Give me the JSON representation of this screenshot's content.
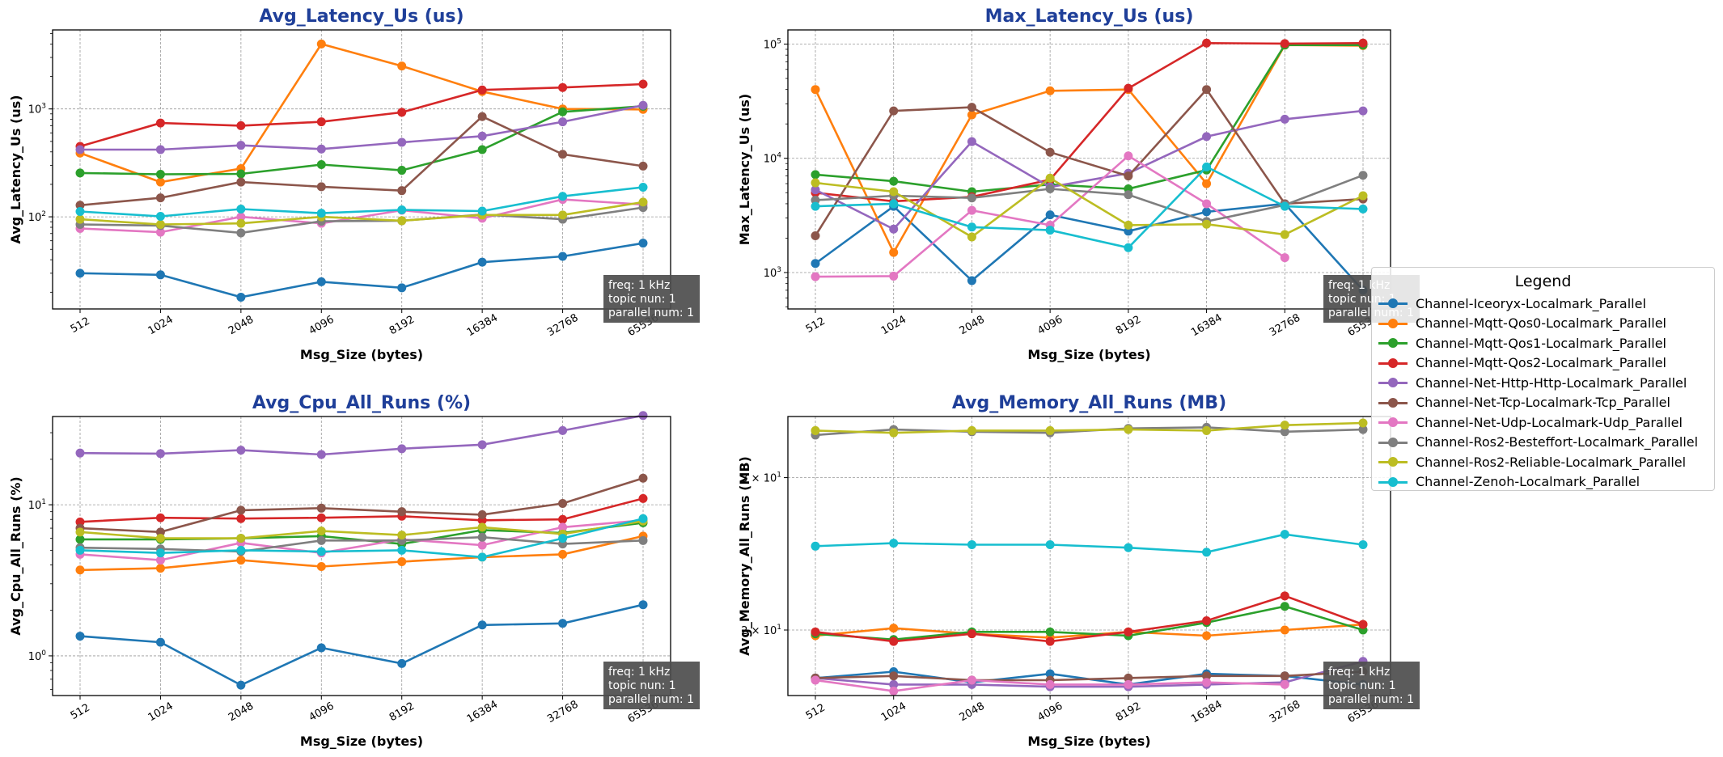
{
  "legend": {
    "title": "Legend",
    "series": [
      {
        "name": "Channel-Iceoryx-Localmark_Parallel",
        "color": "#1f77b4"
      },
      {
        "name": "Channel-Mqtt-Qos0-Localmark_Parallel",
        "color": "#ff7f0e"
      },
      {
        "name": "Channel-Mqtt-Qos1-Localmark_Parallel",
        "color": "#2ca02c"
      },
      {
        "name": "Channel-Mqtt-Qos2-Localmark_Parallel",
        "color": "#d62728"
      },
      {
        "name": "Channel-Net-Http-Http-Localmark_Parallel",
        "color": "#9467bd"
      },
      {
        "name": "Channel-Net-Tcp-Localmark-Tcp_Parallel",
        "color": "#8c564b"
      },
      {
        "name": "Channel-Net-Udp-Localmark-Udp_Parallel",
        "color": "#e377c2"
      },
      {
        "name": "Channel-Ros2-Besteffort-Localmark_Parallel",
        "color": "#7f7f7f"
      },
      {
        "name": "Channel-Ros2-Reliable-Localmark_Parallel",
        "color": "#bcbd22"
      },
      {
        "name": "Channel-Zenoh-Localmark_Parallel",
        "color": "#17becf"
      }
    ]
  },
  "annotation": [
    "freq: 1 kHz",
    "topic nun: 1",
    "parallel num: 1"
  ],
  "chart_data": [
    {
      "type": "line",
      "title": "Avg_Latency_Us  (us)",
      "xlabel": "Msg_Size (bytes)",
      "ylabel": "Avg_Latency_Us (us)",
      "yscale": "log",
      "ylim": [
        14,
        5400
      ],
      "grid": true,
      "categories": [
        "512",
        "1024",
        "2048",
        "4096",
        "8192",
        "16384",
        "32768",
        "65536"
      ],
      "yticks": [
        {
          "value": 100,
          "base": "10",
          "exp": "2"
        },
        {
          "value": 1000,
          "base": "10",
          "exp": "3"
        }
      ],
      "series": [
        {
          "values": [
            30,
            29,
            18,
            25,
            22,
            38,
            43,
            57
          ]
        },
        {
          "values": [
            390,
            210,
            280,
            4000,
            2500,
            1450,
            1000,
            990
          ]
        },
        {
          "values": [
            255,
            248,
            250,
            305,
            270,
            420,
            940,
            1060
          ]
        },
        {
          "values": [
            450,
            740,
            700,
            760,
            930,
            1500,
            1580,
            1700
          ]
        },
        {
          "values": [
            420,
            420,
            460,
            425,
            490,
            560,
            760,
            1080
          ]
        },
        {
          "values": [
            128,
            150,
            210,
            190,
            175,
            850,
            380,
            295
          ]
        },
        {
          "values": [
            78,
            72,
            100,
            87,
            115,
            97,
            145,
            130
          ]
        },
        {
          "values": [
            85,
            83,
            71,
            91,
            92,
            105,
            95,
            122
          ]
        },
        {
          "values": [
            95,
            85,
            87,
            100,
            92,
            104,
            104,
            137
          ]
        },
        {
          "values": [
            112,
            101,
            118,
            108,
            116,
            113,
            155,
            188
          ]
        }
      ]
    },
    {
      "type": "line",
      "title": "Max_Latency_Us  (us)",
      "xlabel": "Msg_Size (bytes)",
      "ylabel": "Max_Latency_Us (us)",
      "yscale": "log",
      "ylim": [
        480,
        133000
      ],
      "grid": true,
      "categories": [
        "512",
        "1024",
        "2048",
        "4096",
        "8192",
        "16384",
        "32768",
        "65536"
      ],
      "yticks": [
        {
          "value": 1000,
          "base": "10",
          "exp": "3"
        },
        {
          "value": 10000,
          "base": "10",
          "exp": "4"
        },
        {
          "value": 100000,
          "base": "10",
          "exp": "5"
        }
      ],
      "series": [
        {
          "values": [
            1200,
            3800,
            850,
            3200,
            2300,
            3400,
            4000,
            700
          ]
        },
        {
          "values": [
            40000,
            1500,
            24000,
            39000,
            40000,
            6000,
            98000,
            97000
          ]
        },
        {
          "values": [
            7200,
            6300,
            5100,
            5900,
            5400,
            7900,
            98000,
            98000
          ]
        },
        {
          "values": [
            5000,
            4200,
            4600,
            6500,
            41000,
            102000,
            101000,
            102000
          ]
        },
        {
          "values": [
            5300,
            2400,
            14000,
            5600,
            7400,
            15500,
            22000,
            26000
          ]
        },
        {
          "values": [
            2100,
            26000,
            28000,
            11300,
            7000,
            40000,
            4000,
            4400
          ]
        },
        {
          "values": [
            920,
            930,
            3500,
            2600,
            10500,
            4000,
            1350,
            null
          ]
        },
        {
          "values": [
            4300,
            4700,
            4500,
            5400,
            4800,
            2800,
            3900,
            7100
          ]
        },
        {
          "values": [
            6100,
            5100,
            2050,
            6700,
            2600,
            2650,
            2150,
            4700
          ]
        },
        {
          "values": [
            3800,
            4000,
            2500,
            2350,
            1650,
            8400,
            3800,
            3600
          ]
        }
      ]
    },
    {
      "type": "line",
      "title": "Avg_Cpu_All_Runs  (%)",
      "xlabel": "Msg_Size (bytes)",
      "ylabel": "Avg_Cpu_All_Runs (%)",
      "yscale": "log",
      "ylim": [
        0.546,
        38.4
      ],
      "grid": true,
      "categories": [
        "512",
        "1024",
        "2048",
        "4096",
        "8192",
        "16384",
        "32768",
        "65536"
      ],
      "yticks": [
        {
          "value": 1,
          "base": "10",
          "exp": "0"
        },
        {
          "value": 10,
          "base": "10",
          "exp": "1"
        }
      ],
      "series": [
        {
          "values": [
            1.35,
            1.23,
            0.64,
            1.13,
            0.89,
            1.6,
            1.64,
            2.18
          ]
        },
        {
          "values": [
            3.7,
            3.8,
            4.3,
            3.9,
            4.2,
            4.5,
            4.7,
            6.2
          ]
        },
        {
          "values": [
            5.9,
            5.9,
            6.0,
            6.2,
            5.5,
            6.8,
            6.5,
            7.6
          ]
        },
        {
          "values": [
            7.7,
            8.2,
            8.1,
            8.2,
            8.4,
            7.9,
            8.0,
            11.0
          ]
        },
        {
          "values": [
            22,
            21.8,
            23,
            21.5,
            23.5,
            25,
            31,
            39
          ]
        },
        {
          "values": [
            7.0,
            6.6,
            9.2,
            9.5,
            9.0,
            8.6,
            10.2,
            15
          ]
        },
        {
          "values": [
            4.7,
            4.3,
            5.6,
            4.8,
            5.9,
            5.4,
            7.1,
            7.9
          ]
        },
        {
          "values": [
            5.2,
            5.1,
            4.9,
            5.8,
            5.8,
            6.1,
            5.5,
            5.8
          ]
        },
        {
          "values": [
            6.6,
            6.0,
            6.0,
            6.7,
            6.3,
            7.1,
            6.4,
            7.8
          ]
        },
        {
          "values": [
            5.0,
            4.8,
            5.0,
            4.9,
            5.0,
            4.5,
            6.0,
            8.1
          ]
        }
      ]
    },
    {
      "type": "line",
      "title": "Avg_Memory_All_Runs  (MB)",
      "xlabel": "Msg_Size (bytes)",
      "ylabel": "Avg_Memory_All_Runs (MB)",
      "yscale": "log",
      "ylim": [
        16.8,
        35.3
      ],
      "grid": true,
      "categories": [
        "512",
        "1024",
        "2048",
        "4096",
        "8192",
        "16384",
        "32768",
        "65536"
      ],
      "yticks": [
        {
          "value": 20,
          "base": "2 × 10",
          "exp": "1"
        },
        {
          "value": 30,
          "base": "3 × 10",
          "exp": "1"
        }
      ],
      "series": [
        {
          "values": [
            17.6,
            17.9,
            17.4,
            17.8,
            17.3,
            17.8,
            17.7,
            17.3
          ]
        },
        {
          "values": [
            19.7,
            20.1,
            19.8,
            19.6,
            19.9,
            19.7,
            20.0,
            20.3
          ]
        },
        {
          "values": [
            19.8,
            19.5,
            19.9,
            19.9,
            19.7,
            20.4,
            21.3,
            20.0
          ]
        },
        {
          "values": [
            19.9,
            19.4,
            19.8,
            19.4,
            19.9,
            20.5,
            21.9,
            20.3
          ]
        },
        {
          "values": [
            17.6,
            17.3,
            17.3,
            17.2,
            17.2,
            17.3,
            17.4,
            18.4
          ]
        },
        {
          "values": [
            17.6,
            17.7,
            17.5,
            17.5,
            17.6,
            17.7,
            17.7,
            17.9
          ]
        },
        {
          "values": [
            17.5,
            17.0,
            17.5,
            17.3,
            17.3,
            17.4,
            17.3,
            null
          ]
        },
        {
          "values": [
            33.6,
            34.1,
            33.9,
            33.8,
            34.2,
            34.3,
            33.9,
            34.1
          ]
        },
        {
          "values": [
            34.0,
            33.8,
            34.0,
            34.0,
            34.1,
            34.0,
            34.5,
            34.7
          ]
        },
        {
          "values": [
            25.0,
            25.2,
            25.1,
            25.1,
            24.9,
            24.6,
            25.8,
            25.1
          ]
        }
      ]
    }
  ]
}
